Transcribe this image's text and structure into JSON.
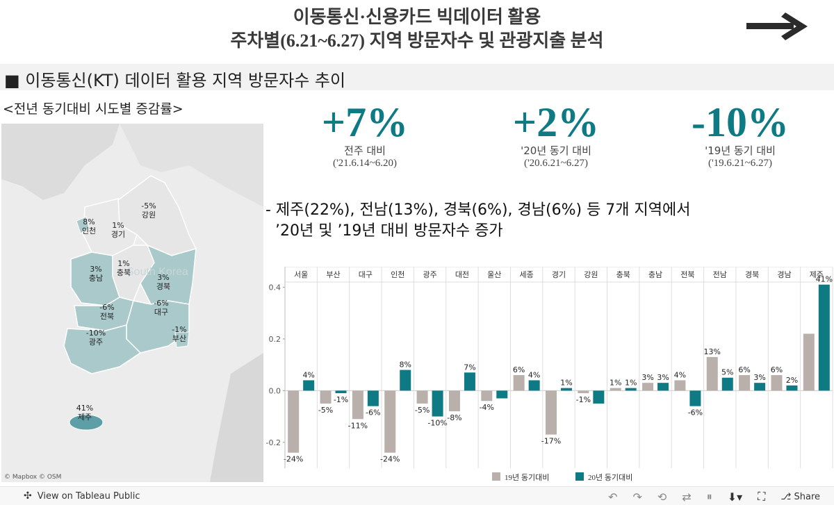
{
  "header": {
    "title_line1": "이동통신·신용카드 빅데이터 활용",
    "title_line2": "주차별(6.21~6.27) 지역 방문자수 및 관광지출 분석"
  },
  "section": {
    "label": "■ 이동통신(KT) 데이터 활용 지역 방문자수 추이"
  },
  "map": {
    "subtitle": "<전년 동기대비 시도별 증감률>",
    "attribution": "© Mapbox  © OSM",
    "watermark": "South Korea",
    "regions": [
      {
        "name": "강원",
        "value": "-5%"
      },
      {
        "name": "경기",
        "value": "1%"
      },
      {
        "name": "인천",
        "value": "8%"
      },
      {
        "name": "충남",
        "value": "3%"
      },
      {
        "name": "충북",
        "value": "1%"
      },
      {
        "name": "경북",
        "value": "3%"
      },
      {
        "name": "전북",
        "value": "-6%"
      },
      {
        "name": "대구",
        "value": "-6%"
      },
      {
        "name": "광주",
        "value": "-10%"
      },
      {
        "name": "부산",
        "value": "-1%"
      },
      {
        "name": "제주",
        "value": "41%"
      }
    ]
  },
  "kpis": [
    {
      "value": "+7%",
      "label": "전주 대비",
      "period": "('21.6.14~6.20)"
    },
    {
      "value": "+2%",
      "label": "'20년 동기 대비",
      "period": "('20.6.21~6.27)"
    },
    {
      "value": "-10%",
      "label": "'19년 동기 대비",
      "period": "('19.6.21~6.27)"
    }
  ],
  "summary": {
    "line1": "- 제주(22%), 전남(13%), 경북(6%), 경남(6%) 등 7개 지역에서",
    "line2": "  ’20년 및 ’19년 대비 방문자수 증가"
  },
  "chart_data": {
    "type": "bar",
    "categories": [
      "서울",
      "부산",
      "대구",
      "인천",
      "광주",
      "대전",
      "울산",
      "세종",
      "경기",
      "강원",
      "충북",
      "충남",
      "전북",
      "전남",
      "경북",
      "경남",
      "제주"
    ],
    "series": [
      {
        "name": "19년 동기대비",
        "color": "#bab0ab",
        "values": [
          -0.24,
          -0.05,
          -0.11,
          -0.24,
          -0.05,
          -0.08,
          -0.04,
          0.06,
          -0.17,
          -0.01,
          0.01,
          0.03,
          0.04,
          0.13,
          0.06,
          0.06,
          0.22
        ],
        "labels": [
          "-24%",
          "-5%",
          "-11%",
          "-24%",
          "-5%",
          "-8%",
          "-4%",
          "6%",
          "-17%",
          "-1%",
          "1%",
          "3%",
          "4%",
          "13%",
          "6%",
          "6%",
          ""
        ]
      },
      {
        "name": "20년 동기대비",
        "color": "#0e7a84",
        "values": [
          0.04,
          -0.01,
          -0.06,
          0.08,
          -0.1,
          0.07,
          -0.03,
          0.04,
          0.01,
          -0.05,
          0.01,
          0.03,
          -0.06,
          0.05,
          0.03,
          0.02,
          0.41
        ],
        "labels": [
          "4%",
          "-1%",
          "-6%",
          "8%",
          "-10%",
          "7%",
          "",
          "4%",
          "1%",
          "",
          "1%",
          "3%",
          "-6%",
          "5%",
          "3%",
          "2%",
          "41%"
        ]
      }
    ],
    "yticks": [
      "0.4",
      "0.2",
      "0.0",
      "-0.2"
    ],
    "ytick_values": [
      0.4,
      0.2,
      0.0,
      -0.2
    ],
    "ylim": [
      -0.3,
      0.42
    ],
    "legend": [
      "19년 동기대비",
      "20년 동기대비"
    ]
  },
  "footer": {
    "view_label": "View on Tableau Public",
    "share_label": "Share"
  }
}
